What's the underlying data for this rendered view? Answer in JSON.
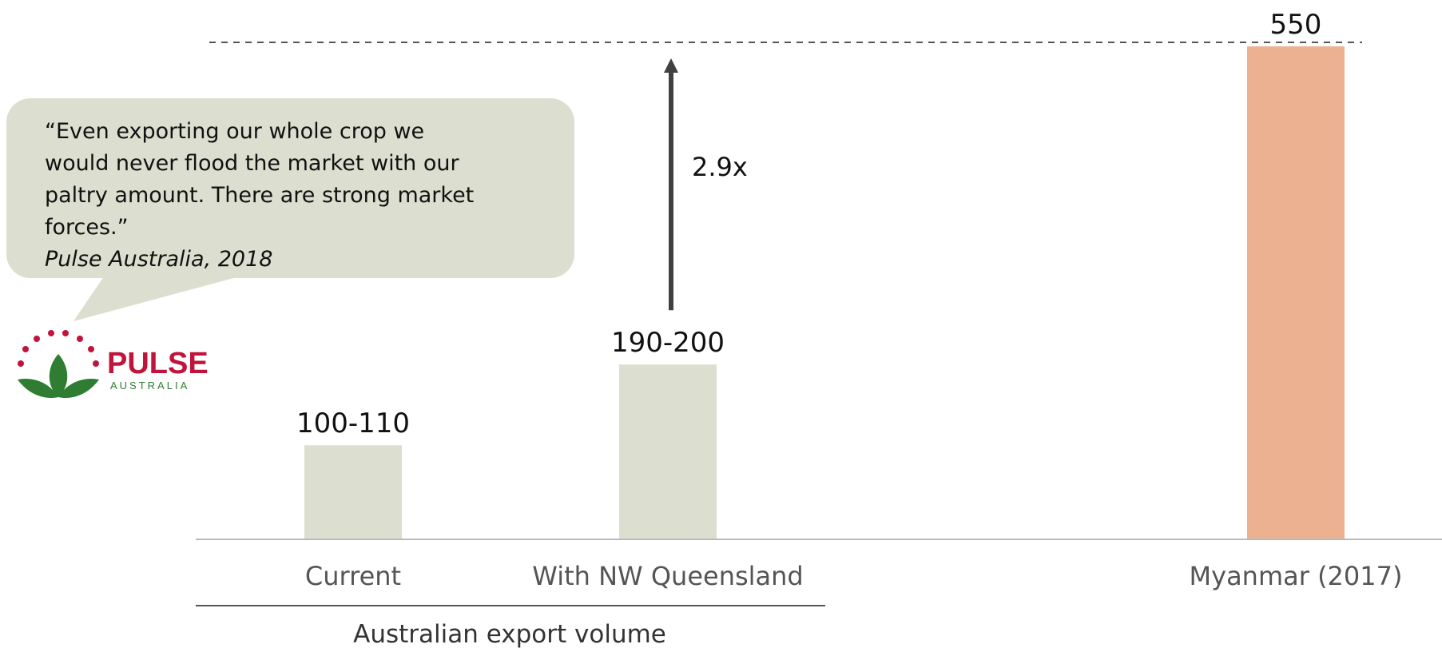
{
  "chart_data": {
    "type": "bar",
    "categories": [
      "Current",
      "With NW Queensland",
      "Myanmar (2017)"
    ],
    "values": [
      105,
      195,
      550
    ],
    "value_labels": [
      "100-110",
      "190-200",
      "550"
    ],
    "bar_colors": [
      "#dcdfcf",
      "#dcdfcf",
      "#ecb190"
    ],
    "ylim": [
      0,
      550
    ],
    "group_label": "Australian export volume",
    "multiplier_label": "2.9x",
    "reference_line_value": 550,
    "title": "",
    "xlabel": "",
    "ylabel": ""
  },
  "callout": {
    "quote": "“Even exporting our whole crop we would never flood the market with our paltry amount. There are strong market forces.”",
    "source": "Pulse Australia, 2018"
  },
  "logo": {
    "name": "PULSE",
    "sub": "AUSTRALIA"
  },
  "colors": {
    "bar_neutral": "#dcdfcf",
    "bar_highlight": "#ecb190",
    "arrow": "#404040",
    "brand_red": "#c0143c",
    "brand_green": "#2e7d32"
  }
}
